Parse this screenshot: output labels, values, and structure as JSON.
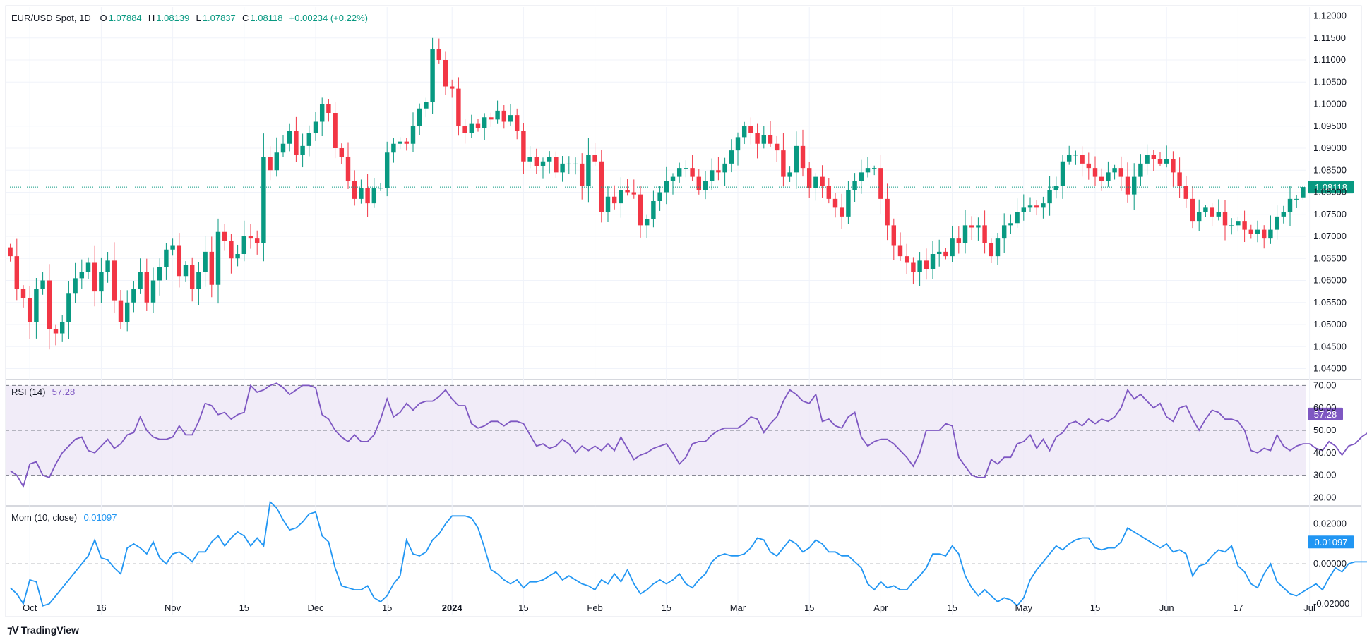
{
  "header": {
    "symbol": "EUR/USD Spot, 1D",
    "o_label": "O",
    "o_value": "1.07884",
    "h_label": "H",
    "h_value": "1.08139",
    "l_label": "L",
    "l_value": "1.07837",
    "c_label": "C",
    "c_value": "1.08118",
    "change": "+0.00234 (+0.22%)"
  },
  "rsi": {
    "label": "RSI (14)",
    "value": "57.28"
  },
  "mom": {
    "label": "Mom (10, close)",
    "value": "0.01097"
  },
  "brand": "TradingView",
  "colors": {
    "up": "#089981",
    "down": "#f23645",
    "rsi": "#7e57c2",
    "mom": "#2196f3",
    "rsi_band": "#ede7f6"
  },
  "chart_data": [
    {
      "type": "candlestick",
      "title": "EUR/USD Spot, 1D",
      "ylim": [
        1.038,
        1.122
      ],
      "y_ticks": [
        "1.12000",
        "1.11500",
        "1.11000",
        "1.10500",
        "1.10000",
        "1.09500",
        "1.09000",
        "1.08500",
        "1.08000",
        "1.07500",
        "1.07000",
        "1.06500",
        "1.06000",
        "1.05500",
        "1.05000",
        "1.04500",
        "1.04000"
      ],
      "last_price": 1.08118,
      "last_label": "1.08118",
      "x_ticks": [
        "Oct",
        "16",
        "Nov",
        "15",
        "Dec",
        "15",
        "2024",
        "15",
        "Feb",
        "15",
        "Mar",
        "15",
        "Apr",
        "15",
        "May",
        "15",
        "Jun",
        "17",
        "Jul"
      ],
      "x_tick_index": [
        3,
        14,
        25,
        36,
        47,
        58,
        68,
        79,
        90,
        101,
        112,
        123,
        134,
        145,
        156,
        167,
        178,
        189,
        200
      ],
      "closes": [
        1.0655,
        1.058,
        1.056,
        1.0505,
        1.058,
        1.06,
        1.049,
        1.048,
        1.0505,
        1.057,
        1.0605,
        1.062,
        1.064,
        1.0575,
        1.062,
        1.0645,
        1.0555,
        1.0505,
        1.055,
        1.058,
        1.062,
        1.055,
        1.06,
        1.063,
        1.067,
        1.068,
        1.061,
        1.0635,
        1.058,
        1.062,
        1.0665,
        1.059,
        1.071,
        1.069,
        1.065,
        1.066,
        1.07,
        1.0695,
        1.0685,
        1.088,
        1.085,
        1.089,
        1.091,
        1.094,
        1.0885,
        1.0905,
        1.0935,
        1.096,
        1.1,
        1.098,
        1.09,
        1.088,
        1.0825,
        1.0785,
        1.081,
        1.0775,
        1.081,
        1.081,
        1.089,
        1.091,
        1.0915,
        1.091,
        1.095,
        1.099,
        1.1005,
        1.1125,
        1.11,
        1.104,
        1.1035,
        1.095,
        1.0935,
        1.0955,
        1.0945,
        1.097,
        1.0965,
        1.0985,
        1.096,
        1.0975,
        1.094,
        1.087,
        1.088,
        1.086,
        1.087,
        1.088,
        1.0845,
        1.0865,
        1.0865,
        1.0865,
        1.0815,
        1.0885,
        1.087,
        1.0755,
        1.079,
        1.0775,
        1.0805,
        1.08,
        1.0795,
        1.0725,
        1.074,
        1.078,
        1.08,
        1.0825,
        1.0835,
        1.0855,
        1.0855,
        1.0835,
        1.0805,
        1.0825,
        1.085,
        1.0845,
        1.0865,
        1.0895,
        1.0925,
        1.095,
        1.0935,
        1.091,
        1.093,
        1.091,
        1.0895,
        1.0835,
        1.0845,
        1.0905,
        1.0855,
        1.081,
        1.0835,
        1.0815,
        1.0785,
        1.0765,
        1.0745,
        1.0805,
        1.0825,
        1.0845,
        1.0855,
        1.0855,
        1.0785,
        1.0725,
        1.068,
        1.0655,
        1.064,
        1.062,
        1.0645,
        1.0625,
        1.066,
        1.0665,
        1.0655,
        1.0695,
        1.0685,
        1.0725,
        1.072,
        1.0725,
        1.0685,
        1.0655,
        1.0695,
        1.0725,
        1.073,
        1.0755,
        1.0765,
        1.077,
        1.0765,
        1.0775,
        1.0805,
        1.0815,
        1.087,
        1.0885,
        1.0885,
        1.0865,
        1.0855,
        1.0835,
        1.0825,
        1.0845,
        1.0855,
        1.0835,
        1.0795,
        1.0835,
        1.0865,
        1.0885,
        1.0875,
        1.0865,
        1.0875,
        1.0845,
        1.0815,
        1.0785,
        1.0735,
        1.0755,
        1.0765,
        1.0745,
        1.0755,
        1.0725,
        1.0725,
        1.0735,
        1.0715,
        1.0705,
        1.0715,
        1.0695,
        1.0715,
        1.0745,
        1.0755,
        1.0785,
        1.0785,
        1.08118
      ],
      "ohlc_last": [
        1.07884,
        1.08139,
        1.07837,
        1.08118
      ]
    },
    {
      "type": "line",
      "title": "RSI (14)",
      "ylim": [
        17,
        72
      ],
      "y_ticks": [
        "70.00",
        "60.00",
        "50.00",
        "40.00",
        "30.00",
        "20.00"
      ],
      "band": [
        30,
        70
      ],
      "midline": 50,
      "values": [
        32,
        30,
        25,
        35,
        36,
        30,
        29,
        35,
        40,
        43,
        46,
        47,
        41,
        40,
        43,
        46,
        42,
        44,
        48,
        49,
        56,
        50,
        47,
        46,
        46,
        47,
        52,
        48,
        48,
        54,
        62,
        61,
        57,
        58,
        55,
        57,
        58,
        70,
        67,
        68,
        70,
        71,
        69,
        66,
        68,
        70,
        70,
        69,
        57,
        55,
        50,
        47,
        45,
        48,
        45,
        45,
        48,
        55,
        64,
        56,
        58,
        62,
        59,
        62,
        63,
        63,
        65,
        68,
        64,
        61,
        61,
        53,
        51,
        52,
        54,
        54,
        52,
        54,
        54,
        53,
        48,
        43,
        44,
        42,
        43,
        46,
        44,
        40,
        43,
        41,
        43,
        41,
        44,
        41,
        47,
        42,
        37,
        39,
        40,
        42,
        43,
        44,
        40,
        35,
        38,
        44,
        45,
        45,
        48,
        50,
        51,
        51,
        51,
        53,
        56,
        55,
        49,
        53,
        56,
        63,
        68,
        66,
        63,
        62,
        66,
        54,
        55,
        52,
        51,
        56,
        58,
        47,
        43,
        45,
        46,
        46,
        44,
        41,
        38,
        34,
        40,
        50,
        50,
        50,
        53,
        52,
        38,
        34,
        30,
        29,
        29,
        37,
        35,
        38,
        38,
        44,
        45,
        48,
        42,
        46,
        41,
        47,
        49,
        53,
        54,
        52,
        55,
        53,
        55,
        54,
        56,
        60,
        68,
        64,
        66,
        63,
        60,
        62,
        56,
        54,
        60,
        61,
        55,
        50,
        55,
        59,
        58,
        55,
        55,
        54,
        50,
        41,
        40,
        42,
        41,
        48,
        43,
        41,
        43,
        44,
        44,
        42,
        41,
        45,
        43,
        39,
        43,
        44,
        47,
        49,
        55,
        57.28
      ]
    },
    {
      "type": "line",
      "title": "Mom (10, close)",
      "ylim": [
        -0.025,
        0.028
      ],
      "y_ticks": [
        "0.02000",
        "0.00000",
        "-0.02000"
      ],
      "midline": 0,
      "values": [
        -0.012,
        -0.015,
        -0.02,
        -0.008,
        -0.009,
        -0.021,
        -0.02,
        -0.016,
        -0.012,
        -0.008,
        -0.004,
        0.0,
        0.004,
        0.012,
        0.003,
        0.002,
        -0.002,
        -0.005,
        0.008,
        0.01,
        0.008,
        0.005,
        0.011,
        0.003,
        0.0,
        0.005,
        0.006,
        0.004,
        0.001,
        0.006,
        0.006,
        0.011,
        0.014,
        0.009,
        0.013,
        0.016,
        0.014,
        0.009,
        0.013,
        0.009,
        0.031,
        0.028,
        0.022,
        0.017,
        0.018,
        0.021,
        0.025,
        0.026,
        0.014,
        0.011,
        -0.002,
        -0.011,
        -0.012,
        -0.013,
        -0.013,
        -0.011,
        -0.017,
        -0.019,
        -0.016,
        -0.01,
        -0.006,
        0.012,
        0.005,
        0.004,
        0.006,
        0.012,
        0.015,
        0.02,
        0.024,
        0.024,
        0.024,
        0.023,
        0.018,
        0.008,
        -0.003,
        -0.005,
        -0.008,
        -0.01,
        -0.008,
        -0.012,
        -0.009,
        -0.009,
        -0.008,
        -0.006,
        -0.004,
        -0.008,
        -0.006,
        -0.008,
        -0.01,
        -0.011,
        -0.013,
        -0.008,
        -0.01,
        -0.005,
        -0.009,
        -0.003,
        -0.01,
        -0.015,
        -0.013,
        -0.01,
        -0.008,
        -0.01,
        -0.008,
        -0.005,
        -0.01,
        -0.012,
        -0.008,
        -0.005,
        0.001,
        0.004,
        0.005,
        0.004,
        0.004,
        0.005,
        0.008,
        0.013,
        0.012,
        0.006,
        0.004,
        0.008,
        0.012,
        0.01,
        0.006,
        0.008,
        0.012,
        0.01,
        0.006,
        0.006,
        0.004,
        0.004,
        0.001,
        -0.002,
        -0.01,
        -0.013,
        -0.009,
        -0.012,
        -0.011,
        -0.013,
        -0.013,
        -0.009,
        -0.006,
        -0.002,
        0.005,
        0.005,
        0.004,
        0.009,
        0.005,
        -0.006,
        -0.012,
        -0.016,
        -0.013,
        -0.016,
        -0.019,
        -0.017,
        -0.018,
        -0.021,
        -0.017,
        -0.008,
        -0.003,
        0.001,
        0.005,
        0.009,
        0.007,
        0.01,
        0.012,
        0.013,
        0.013,
        0.008,
        0.007,
        0.008,
        0.008,
        0.011,
        0.018,
        0.016,
        0.014,
        0.012,
        0.01,
        0.008,
        0.01,
        0.006,
        0.007,
        0.005,
        -0.006,
        -0.001,
        0.0,
        0.004,
        0.007,
        0.006,
        0.009,
        -0.001,
        -0.004,
        -0.01,
        -0.012,
        -0.005,
        0.0,
        -0.009,
        -0.012,
        -0.015,
        -0.016,
        -0.014,
        -0.012,
        -0.01,
        -0.013,
        -0.007,
        -0.002,
        -0.004,
        0.0,
        0.001,
        0.001,
        0.001,
        0.004,
        0.01097
      ]
    }
  ]
}
